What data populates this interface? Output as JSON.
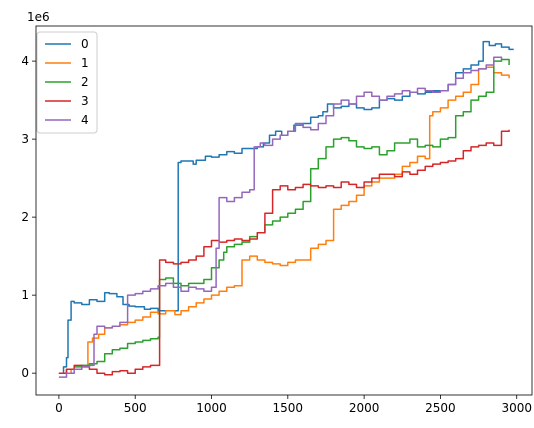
{
  "chart_data": {
    "type": "line",
    "title": "",
    "xlabel": "",
    "ylabel": "",
    "y_offset_label": "1e6",
    "xlim": [
      -150,
      3100
    ],
    "ylim": [
      -0.28,
      4.45
    ],
    "x_ticks": [
      0,
      500,
      1000,
      1500,
      2000,
      2500,
      3000
    ],
    "y_ticks": [
      0,
      1,
      2,
      3,
      4
    ],
    "grid": false,
    "legend_position": "top-left",
    "series": [
      {
        "name": "0",
        "color": "#1f77b4",
        "points": [
          [
            0,
            0
          ],
          [
            30,
            0.08
          ],
          [
            50,
            0.2
          ],
          [
            60,
            0.68
          ],
          [
            80,
            0.92
          ],
          [
            100,
            0.9
          ],
          [
            150,
            0.88
          ],
          [
            200,
            0.94
          ],
          [
            250,
            0.92
          ],
          [
            300,
            1.03
          ],
          [
            330,
            1.02
          ],
          [
            380,
            0.98
          ],
          [
            420,
            0.88
          ],
          [
            460,
            0.86
          ],
          [
            500,
            0.85
          ],
          [
            560,
            0.82
          ],
          [
            600,
            0.83
          ],
          [
            650,
            0.8
          ],
          [
            700,
            0.8
          ],
          [
            760,
            0.8
          ],
          [
            780,
            0.8
          ],
          [
            782,
            2.7
          ],
          [
            800,
            2.72
          ],
          [
            850,
            2.72
          ],
          [
            880,
            2.68
          ],
          [
            900,
            2.73
          ],
          [
            960,
            2.78
          ],
          [
            1000,
            2.77
          ],
          [
            1050,
            2.8
          ],
          [
            1100,
            2.84
          ],
          [
            1150,
            2.82
          ],
          [
            1200,
            2.88
          ],
          [
            1230,
            2.88
          ],
          [
            1260,
            2.88
          ],
          [
            1300,
            2.9
          ],
          [
            1340,
            2.95
          ],
          [
            1380,
            3.05
          ],
          [
            1420,
            3.1
          ],
          [
            1460,
            3.05
          ],
          [
            1500,
            3.1
          ],
          [
            1540,
            3.18
          ],
          [
            1600,
            3.2
          ],
          [
            1650,
            3.28
          ],
          [
            1700,
            3.3
          ],
          [
            1730,
            3.35
          ],
          [
            1760,
            3.45
          ],
          [
            1800,
            3.4
          ],
          [
            1850,
            3.42
          ],
          [
            1900,
            3.45
          ],
          [
            1950,
            3.4
          ],
          [
            2000,
            3.38
          ],
          [
            2050,
            3.4
          ],
          [
            2100,
            3.5
          ],
          [
            2150,
            3.52
          ],
          [
            2200,
            3.5
          ],
          [
            2250,
            3.55
          ],
          [
            2300,
            3.6
          ],
          [
            2350,
            3.58
          ],
          [
            2400,
            3.6
          ],
          [
            2450,
            3.62
          ],
          [
            2500,
            3.62
          ],
          [
            2550,
            3.7
          ],
          [
            2600,
            3.85
          ],
          [
            2650,
            3.9
          ],
          [
            2700,
            3.95
          ],
          [
            2750,
            4.0
          ],
          [
            2780,
            4.25
          ],
          [
            2820,
            4.2
          ],
          [
            2860,
            4.22
          ],
          [
            2900,
            4.18
          ],
          [
            2950,
            4.15
          ],
          [
            2980,
            4.15
          ]
        ]
      },
      {
        "name": "1",
        "color": "#ff7f0e",
        "points": [
          [
            0,
            0
          ],
          [
            80,
            0.05
          ],
          [
            150,
            0.1
          ],
          [
            190,
            0.4
          ],
          [
            220,
            0.45
          ],
          [
            260,
            0.5
          ],
          [
            300,
            0.58
          ],
          [
            350,
            0.6
          ],
          [
            400,
            0.62
          ],
          [
            450,
            0.65
          ],
          [
            500,
            0.68
          ],
          [
            550,
            0.72
          ],
          [
            600,
            0.78
          ],
          [
            650,
            0.76
          ],
          [
            700,
            0.8
          ],
          [
            760,
            0.75
          ],
          [
            800,
            0.8
          ],
          [
            850,
            0.85
          ],
          [
            900,
            0.9
          ],
          [
            950,
            0.95
          ],
          [
            1000,
            1.0
          ],
          [
            1050,
            1.05
          ],
          [
            1100,
            1.1
          ],
          [
            1150,
            1.12
          ],
          [
            1200,
            1.45
          ],
          [
            1250,
            1.5
          ],
          [
            1300,
            1.45
          ],
          [
            1350,
            1.42
          ],
          [
            1400,
            1.4
          ],
          [
            1450,
            1.38
          ],
          [
            1500,
            1.42
          ],
          [
            1550,
            1.45
          ],
          [
            1600,
            1.45
          ],
          [
            1650,
            1.6
          ],
          [
            1700,
            1.65
          ],
          [
            1750,
            1.7
          ],
          [
            1800,
            2.1
          ],
          [
            1850,
            2.15
          ],
          [
            1900,
            2.2
          ],
          [
            1950,
            2.28
          ],
          [
            2000,
            2.4
          ],
          [
            2050,
            2.45
          ],
          [
            2100,
            2.5
          ],
          [
            2150,
            2.5
          ],
          [
            2200,
            2.55
          ],
          [
            2250,
            2.65
          ],
          [
            2300,
            2.7
          ],
          [
            2350,
            2.78
          ],
          [
            2400,
            2.75
          ],
          [
            2430,
            3.3
          ],
          [
            2450,
            3.35
          ],
          [
            2500,
            3.4
          ],
          [
            2550,
            3.5
          ],
          [
            2600,
            3.55
          ],
          [
            2650,
            3.6
          ],
          [
            2700,
            3.7
          ],
          [
            2750,
            3.9
          ],
          [
            2800,
            3.92
          ],
          [
            2850,
            3.85
          ],
          [
            2900,
            3.82
          ],
          [
            2950,
            3.78
          ]
        ]
      },
      {
        "name": "2",
        "color": "#2ca02c",
        "points": [
          [
            0,
            0
          ],
          [
            50,
            0.05
          ],
          [
            100,
            0.08
          ],
          [
            150,
            0.1
          ],
          [
            200,
            0.12
          ],
          [
            250,
            0.15
          ],
          [
            300,
            0.25
          ],
          [
            350,
            0.3
          ],
          [
            400,
            0.32
          ],
          [
            450,
            0.38
          ],
          [
            500,
            0.4
          ],
          [
            550,
            0.42
          ],
          [
            600,
            0.44
          ],
          [
            650,
            0.46
          ],
          [
            660,
            1.2
          ],
          [
            700,
            1.22
          ],
          [
            750,
            1.15
          ],
          [
            800,
            1.12
          ],
          [
            850,
            1.15
          ],
          [
            900,
            1.15
          ],
          [
            950,
            1.2
          ],
          [
            1000,
            1.35
          ],
          [
            1050,
            1.45
          ],
          [
            1080,
            1.55
          ],
          [
            1100,
            1.62
          ],
          [
            1150,
            1.65
          ],
          [
            1200,
            1.68
          ],
          [
            1250,
            1.75
          ],
          [
            1300,
            1.8
          ],
          [
            1350,
            1.9
          ],
          [
            1400,
            1.95
          ],
          [
            1450,
            2.0
          ],
          [
            1500,
            2.05
          ],
          [
            1550,
            2.1
          ],
          [
            1600,
            2.2
          ],
          [
            1650,
            2.62
          ],
          [
            1700,
            2.75
          ],
          [
            1750,
            2.9
          ],
          [
            1800,
            3.0
          ],
          [
            1850,
            3.02
          ],
          [
            1900,
            2.98
          ],
          [
            1950,
            2.9
          ],
          [
            2000,
            2.88
          ],
          [
            2050,
            2.9
          ],
          [
            2100,
            2.8
          ],
          [
            2150,
            2.85
          ],
          [
            2200,
            2.95
          ],
          [
            2250,
            2.95
          ],
          [
            2300,
            3.0
          ],
          [
            2350,
            2.9
          ],
          [
            2400,
            2.92
          ],
          [
            2450,
            2.9
          ],
          [
            2500,
            3.0
          ],
          [
            2550,
            3.02
          ],
          [
            2600,
            3.3
          ],
          [
            2650,
            3.35
          ],
          [
            2700,
            3.5
          ],
          [
            2750,
            3.55
          ],
          [
            2800,
            3.6
          ],
          [
            2850,
            4.0
          ],
          [
            2900,
            4.02
          ],
          [
            2950,
            3.95
          ]
        ]
      },
      {
        "name": "3",
        "color": "#d62728",
        "points": [
          [
            0,
            0
          ],
          [
            50,
            0.05
          ],
          [
            100,
            0.1
          ],
          [
            150,
            0.08
          ],
          [
            200,
            0.05
          ],
          [
            250,
            0.0
          ],
          [
            300,
            -0.02
          ],
          [
            350,
            0.02
          ],
          [
            400,
            0.03
          ],
          [
            450,
            0.0
          ],
          [
            500,
            0.05
          ],
          [
            550,
            0.08
          ],
          [
            600,
            0.1
          ],
          [
            650,
            0.1
          ],
          [
            660,
            1.45
          ],
          [
            700,
            1.42
          ],
          [
            750,
            1.4
          ],
          [
            800,
            1.42
          ],
          [
            850,
            1.45
          ],
          [
            900,
            1.5
          ],
          [
            950,
            1.62
          ],
          [
            1000,
            1.7
          ],
          [
            1050,
            1.68
          ],
          [
            1100,
            1.7
          ],
          [
            1150,
            1.72
          ],
          [
            1200,
            1.7
          ],
          [
            1250,
            1.72
          ],
          [
            1300,
            1.8
          ],
          [
            1350,
            2.05
          ],
          [
            1400,
            2.35
          ],
          [
            1450,
            2.4
          ],
          [
            1500,
            2.35
          ],
          [
            1550,
            2.38
          ],
          [
            1600,
            2.42
          ],
          [
            1650,
            2.4
          ],
          [
            1700,
            2.38
          ],
          [
            1750,
            2.4
          ],
          [
            1800,
            2.38
          ],
          [
            1850,
            2.45
          ],
          [
            1900,
            2.42
          ],
          [
            1950,
            2.38
          ],
          [
            2000,
            2.45
          ],
          [
            2050,
            2.5
          ],
          [
            2100,
            2.55
          ],
          [
            2150,
            2.55
          ],
          [
            2200,
            2.52
          ],
          [
            2250,
            2.58
          ],
          [
            2300,
            2.55
          ],
          [
            2350,
            2.6
          ],
          [
            2400,
            2.65
          ],
          [
            2450,
            2.68
          ],
          [
            2500,
            2.7
          ],
          [
            2550,
            2.72
          ],
          [
            2600,
            2.75
          ],
          [
            2650,
            2.85
          ],
          [
            2700,
            2.9
          ],
          [
            2750,
            2.92
          ],
          [
            2800,
            2.95
          ],
          [
            2850,
            2.92
          ],
          [
            2900,
            3.1
          ],
          [
            2950,
            3.12
          ]
        ]
      },
      {
        "name": "4",
        "color": "#9467bd",
        "points": [
          [
            0,
            -0.05
          ],
          [
            50,
            0.0
          ],
          [
            100,
            0.05
          ],
          [
            150,
            0.08
          ],
          [
            200,
            0.1
          ],
          [
            230,
            0.5
          ],
          [
            250,
            0.6
          ],
          [
            300,
            0.58
          ],
          [
            350,
            0.6
          ],
          [
            400,
            0.65
          ],
          [
            450,
            1.0
          ],
          [
            500,
            1.02
          ],
          [
            550,
            1.05
          ],
          [
            600,
            1.08
          ],
          [
            650,
            1.12
          ],
          [
            700,
            1.15
          ],
          [
            750,
            1.1
          ],
          [
            800,
            1.05
          ],
          [
            850,
            1.1
          ],
          [
            900,
            1.08
          ],
          [
            950,
            1.05
          ],
          [
            1000,
            1.1
          ],
          [
            1030,
            1.6
          ],
          [
            1050,
            2.25
          ],
          [
            1100,
            2.2
          ],
          [
            1150,
            2.25
          ],
          [
            1200,
            2.32
          ],
          [
            1250,
            2.35
          ],
          [
            1280,
            2.9
          ],
          [
            1320,
            2.95
          ],
          [
            1350,
            2.92
          ],
          [
            1400,
            3.0
          ],
          [
            1450,
            3.05
          ],
          [
            1500,
            3.1
          ],
          [
            1550,
            3.2
          ],
          [
            1600,
            3.15
          ],
          [
            1650,
            3.12
          ],
          [
            1700,
            3.2
          ],
          [
            1750,
            3.3
          ],
          [
            1800,
            3.45
          ],
          [
            1850,
            3.5
          ],
          [
            1900,
            3.45
          ],
          [
            1950,
            3.55
          ],
          [
            2000,
            3.6
          ],
          [
            2050,
            3.55
          ],
          [
            2100,
            3.5
          ],
          [
            2150,
            3.55
          ],
          [
            2200,
            3.58
          ],
          [
            2250,
            3.62
          ],
          [
            2300,
            3.6
          ],
          [
            2350,
            3.65
          ],
          [
            2400,
            3.62
          ],
          [
            2450,
            3.6
          ],
          [
            2500,
            3.62
          ],
          [
            2550,
            3.7
          ],
          [
            2600,
            3.78
          ],
          [
            2650,
            3.85
          ],
          [
            2700,
            3.88
          ],
          [
            2750,
            3.9
          ],
          [
            2800,
            3.95
          ],
          [
            2850,
            4.05
          ],
          [
            2900,
            4.02
          ]
        ]
      }
    ]
  }
}
